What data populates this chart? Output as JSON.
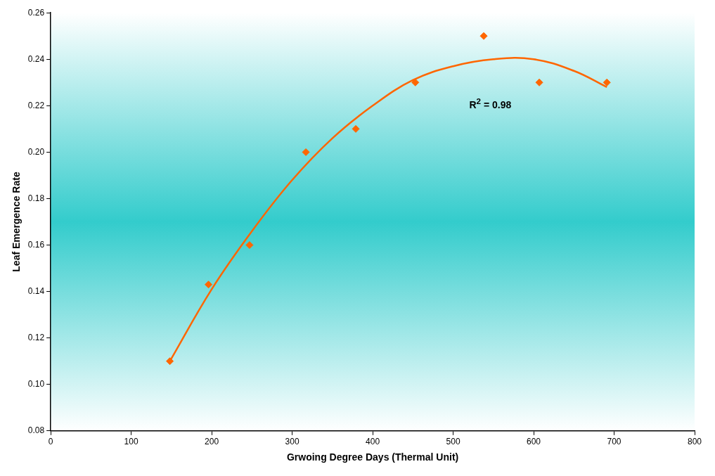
{
  "chart_data": {
    "type": "scatter",
    "xlabel": "Grwoing Degree Days (Thermal Unit)",
    "ylabel": "Leaf Emergence Rate",
    "xlim": [
      0,
      800
    ],
    "xticks": [
      0,
      100,
      200,
      300,
      400,
      500,
      600,
      700,
      800
    ],
    "ylim": [
      0.08,
      0.26
    ],
    "yticks": [
      {
        "value": 0.08,
        "label": "0.08"
      },
      {
        "value": 0.1,
        "label": "0.10"
      },
      {
        "value": 0.12,
        "label": "0.12"
      },
      {
        "value": 0.14,
        "label": "0.14"
      },
      {
        "value": 0.16,
        "label": "0.16"
      },
      {
        "value": 0.18,
        "label": "0.18"
      },
      {
        "value": 0.2,
        "label": "0.20"
      },
      {
        "value": 0.22,
        "label": "0.22"
      },
      {
        "value": 0.24,
        "label": "0.24"
      },
      {
        "value": 0.26,
        "label": "0.26"
      }
    ],
    "grid": false,
    "legend": false,
    "annotations": [
      "R$^{2}$ = 0.98"
    ],
    "series": [
      {
        "type": "scatter",
        "marker": "diamond",
        "color": "#ff6600",
        "x": [
          148,
          196,
          247,
          317,
          379,
          453,
          538,
          607,
          691
        ],
        "values": [
          0.11,
          0.143,
          0.16,
          0.2,
          0.21,
          0.23,
          0.25,
          0.23,
          0.23
        ]
      },
      {
        "type": "line",
        "marker": "none",
        "line_style": "solid",
        "color": "#ff6600",
        "x": [
          148,
          200,
          250,
          300,
          350,
          400,
          450,
          500,
          550,
          600,
          650,
          691
        ],
        "values": [
          0.11,
          0.141,
          0.166,
          0.188,
          0.206,
          0.22,
          0.231,
          0.237,
          0.24,
          0.24,
          0.235,
          0.228
        ]
      }
    ]
  }
}
